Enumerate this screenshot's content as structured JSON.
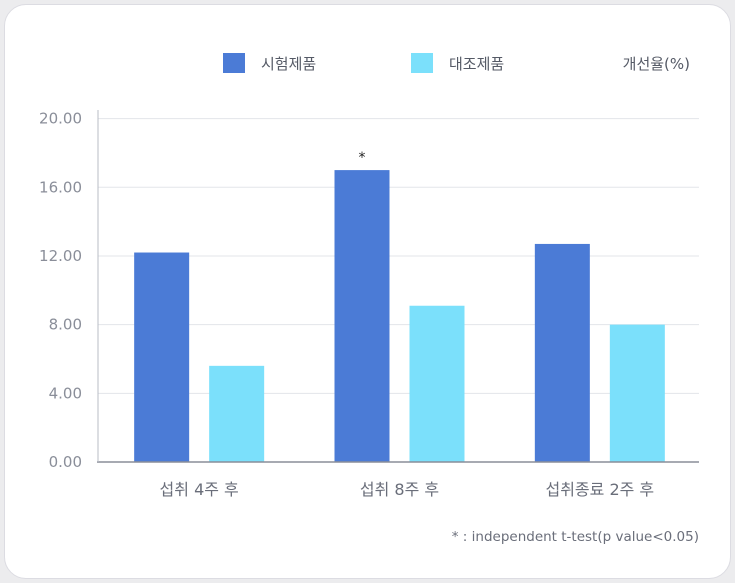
{
  "chart_data": {
    "type": "bar",
    "categories": [
      "섭취 4주 후",
      "섭취 8주 후",
      "섭취종료 2주 후"
    ],
    "series": [
      {
        "name": "시험제품",
        "color": "#4b7bd6",
        "values": [
          12.2,
          17.0,
          12.7
        ]
      },
      {
        "name": "대조제품",
        "color": "#7be0fb",
        "values": [
          5.6,
          9.1,
          8.0
        ]
      }
    ],
    "yunit_label": "개선율(%)",
    "yticks": [
      "0.00",
      "4.00",
      "8.00",
      "12.00",
      "16.00",
      "20.00"
    ],
    "ylim": [
      0,
      20.5
    ],
    "grid": true,
    "legend_position": "top",
    "annotations": [
      {
        "text": "*",
        "category_index": 1,
        "series_index": 0
      }
    ],
    "footnote": "* : independent t-test(p value<0.05)"
  }
}
